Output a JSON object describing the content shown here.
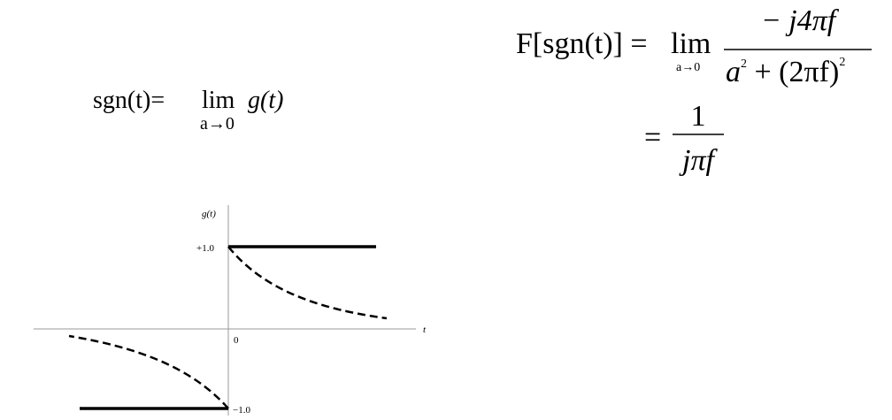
{
  "left_equation": {
    "prefix": "sgn(t)=",
    "operator": "lim",
    "limit": "a→0",
    "function": "g(t)"
  },
  "right_equation": {
    "line1": {
      "lhs": "F[sgn(t)] =",
      "operator": "lim",
      "limit": "a→0",
      "numerator": "− j4πf",
      "denominator": {
        "base": "a",
        "exp1": "2",
        "middle": " + (2πf)",
        "exp2": "2"
      }
    },
    "line2": {
      "equals": "=",
      "numerator": "1",
      "denominator": "jπf"
    }
  },
  "graph": {
    "y_label": "g(t)",
    "x_label": "t",
    "ticks": [
      "+1.0",
      "0",
      "−1.0"
    ]
  }
}
